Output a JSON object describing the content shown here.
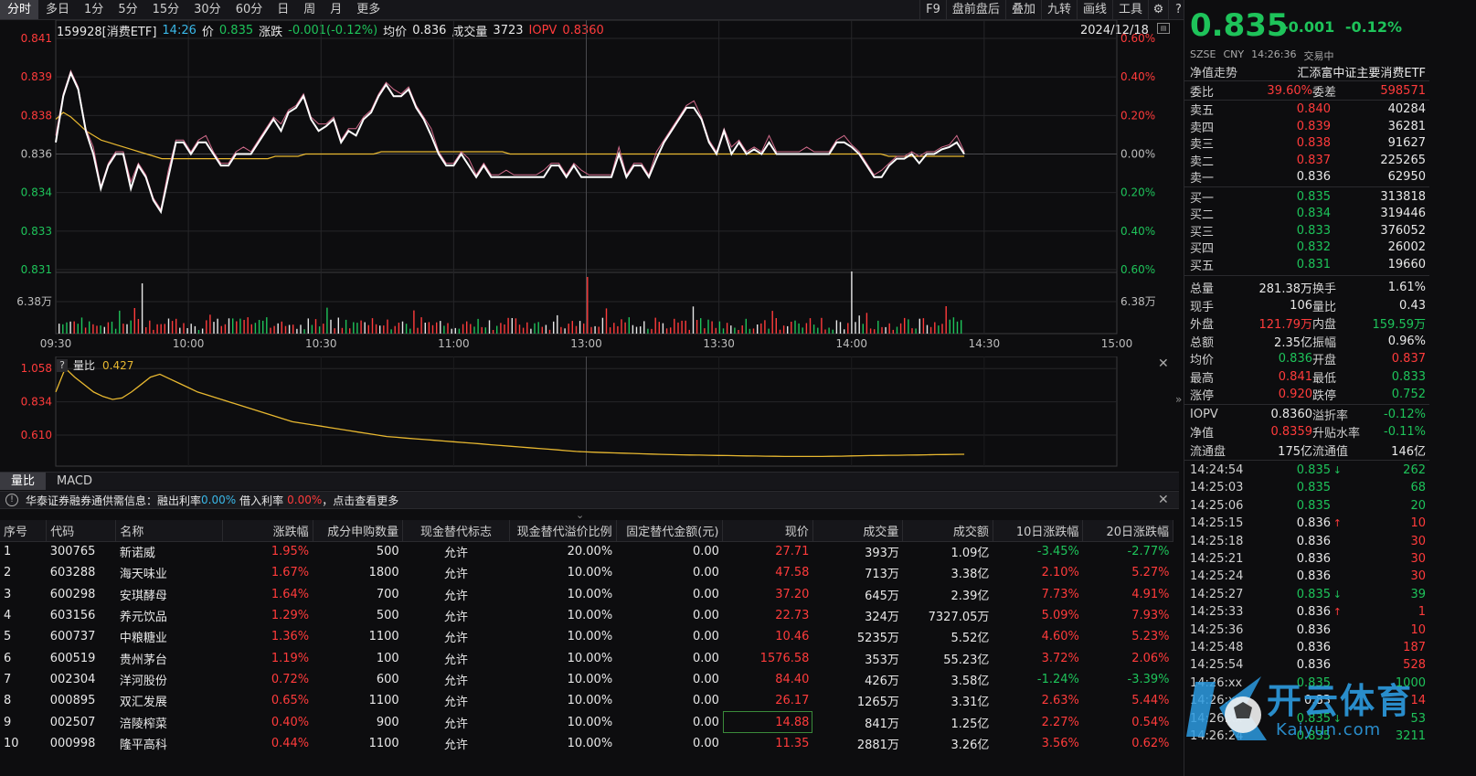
{
  "toolbar": {
    "left": [
      "分时",
      "多日",
      "1分",
      "5分",
      "15分",
      "30分",
      "60分",
      "日",
      "周",
      "月",
      "更多"
    ],
    "right": [
      "F9",
      "盘前盘后",
      "叠加",
      "九转",
      "画线",
      "工具"
    ]
  },
  "info": {
    "code": "159928[消费ETF]",
    "time": "14:26",
    "price_label": "价",
    "price": "0.835",
    "chg_label": "涨跌",
    "chg": "-0.001(-0.12%)",
    "avg_label": "均价",
    "avg": "0.836",
    "vol_label": "成交量",
    "vol": "3723",
    "iopv_label": "IOPV",
    "iopv": "0.8360",
    "date": "2024/12/18"
  },
  "chart_data": [
    {
      "type": "line",
      "name": "intraday",
      "y_ticks_left": [
        "0.841",
        "0.839",
        "0.838",
        "0.836",
        "0.834",
        "0.833",
        "0.831"
      ],
      "y_ticks_right": [
        "0.60%",
        "0.40%",
        "0.20%",
        "0.00%",
        "0.20%",
        "0.40%",
        "0.60%"
      ],
      "vol_tick": "6.38万",
      "x_ticks": [
        "09:30",
        "10:00",
        "10:30",
        "11:00",
        "13:00",
        "13:30",
        "14:00",
        "14:30",
        "15:00"
      ],
      "ylim": [
        0.831,
        0.841
      ],
      "series": [
        {
          "values": [
            0.8365,
            0.8385,
            0.8395,
            0.8388,
            0.837,
            0.836,
            0.8345,
            0.8355,
            0.836,
            0.836,
            0.8345,
            0.8355,
            0.835,
            0.834,
            0.8335,
            0.835,
            0.8365,
            0.8365,
            0.836,
            0.8365,
            0.8365,
            0.836,
            0.8355,
            0.8355,
            0.836,
            0.836,
            0.836,
            0.8365,
            0.837,
            0.8375,
            0.837,
            0.8378,
            0.838,
            0.8385,
            0.8375,
            0.837,
            0.8372,
            0.8375,
            0.8365,
            0.837,
            0.8368,
            0.8375,
            0.8378,
            0.8385,
            0.839,
            0.8385,
            0.8385,
            0.8388,
            0.838,
            0.8375,
            0.8368,
            0.836,
            0.8355,
            0.8355,
            0.836,
            0.8355,
            0.835,
            0.8355,
            0.835,
            0.835,
            0.835,
            0.835,
            0.835,
            0.835,
            0.835,
            0.835,
            0.8355,
            0.8355,
            0.835,
            0.8355,
            0.835,
            0.835,
            0.835,
            0.835,
            0.835,
            0.836,
            0.835,
            0.8355,
            0.8355,
            0.835,
            0.8358,
            0.8365,
            0.837,
            0.8375,
            0.838,
            0.838,
            0.8375,
            0.8365,
            0.836,
            0.837,
            0.836,
            0.8365,
            0.836,
            0.8362,
            0.836,
            0.8365,
            0.836,
            0.836,
            0.836,
            0.836,
            0.836,
            0.836,
            0.836,
            0.836,
            0.8365,
            0.8365,
            0.8363,
            0.836,
            0.8355,
            0.835,
            0.835,
            0.8355,
            0.8358,
            0.8358,
            0.836,
            0.8356,
            0.836,
            0.836,
            0.8362,
            0.8363,
            0.8365,
            0.836
          ]
        },
        {
          "values": [
            0.8375,
            0.8378,
            0.8376,
            0.8373,
            0.837,
            0.8368,
            0.8366,
            0.8365,
            0.8364,
            0.8363,
            0.8362,
            0.8361,
            0.836,
            0.8359,
            0.8358,
            0.8358,
            0.8358,
            0.8358,
            0.8358,
            0.8358,
            0.8358,
            0.8358,
            0.8358,
            0.8358,
            0.8358,
            0.8358,
            0.8358,
            0.8358,
            0.8358,
            0.8359,
            0.8359,
            0.8359,
            0.8359,
            0.836,
            0.836,
            0.836,
            0.836,
            0.836,
            0.836,
            0.836,
            0.836,
            0.836,
            0.836,
            0.8361,
            0.8361,
            0.8361,
            0.8361,
            0.8361,
            0.8361,
            0.8361,
            0.8361,
            0.8361,
            0.8361,
            0.8361,
            0.8361,
            0.8361,
            0.8361,
            0.8361,
            0.8361,
            0.8361,
            0.836,
            0.836,
            0.836,
            0.836,
            0.836,
            0.836,
            0.836,
            0.836,
            0.836,
            0.836,
            0.836,
            0.836,
            0.836,
            0.836,
            0.836,
            0.836,
            0.836,
            0.836,
            0.836,
            0.836,
            0.836,
            0.836,
            0.836,
            0.836,
            0.836,
            0.836,
            0.836,
            0.836,
            0.836,
            0.836,
            0.836,
            0.836,
            0.836,
            0.836,
            0.836,
            0.836,
            0.836,
            0.836,
            0.836,
            0.836,
            0.836,
            0.836,
            0.836,
            0.836,
            0.836,
            0.836,
            0.836,
            0.836,
            0.836,
            0.836,
            0.8359,
            0.8359,
            0.8359,
            0.8359,
            0.8359,
            0.8359,
            0.8359,
            0.8359,
            0.8359,
            0.8359,
            0.8359
          ]
        }
      ]
    },
    {
      "type": "line",
      "name": "量比",
      "title": "量比",
      "current": "0.427",
      "y_ticks": [
        "1.058",
        "0.834",
        "0.610"
      ],
      "ylim": [
        0.45,
        1.09
      ],
      "values": [
        0.9,
        1.06,
        1.0,
        0.95,
        0.9,
        0.87,
        0.85,
        0.86,
        0.9,
        0.95,
        1.0,
        1.02,
        0.99,
        0.96,
        0.93,
        0.9,
        0.88,
        0.86,
        0.84,
        0.82,
        0.8,
        0.78,
        0.76,
        0.74,
        0.72,
        0.7,
        0.69,
        0.68,
        0.67,
        0.66,
        0.65,
        0.64,
        0.63,
        0.62,
        0.61,
        0.6,
        0.595,
        0.59,
        0.585,
        0.58,
        0.575,
        0.57,
        0.565,
        0.56,
        0.555,
        0.55,
        0.545,
        0.54,
        0.535,
        0.53,
        0.525,
        0.52,
        0.515,
        0.51,
        0.505,
        0.5,
        0.497,
        0.494,
        0.492,
        0.49,
        0.488,
        0.486,
        0.484,
        0.482,
        0.48,
        0.478,
        0.477,
        0.476,
        0.475,
        0.474,
        0.473,
        0.472,
        0.471,
        0.47,
        0.469,
        0.468,
        0.467,
        0.466,
        0.466,
        0.466,
        0.466,
        0.466,
        0.467,
        0.468,
        0.47,
        0.471,
        0.472,
        0.473,
        0.474,
        0.474,
        0.475,
        0.476,
        0.477,
        0.478,
        0.479,
        0.48,
        0.481
      ]
    }
  ],
  "tabs": [
    "量比",
    "MACD"
  ],
  "notice": {
    "text1": "华泰证券融券通供需信息：融出利率",
    "rate1": "0.00%",
    "text2": "借入利率",
    "rate2": "0.00%",
    "text3": "，点击查看更多"
  },
  "table": {
    "headers": [
      "序号",
      "代码",
      "名称",
      "涨跌幅",
      "成分申购数量",
      "现金替代标志",
      "现金替代溢价比例",
      "固定替代金额(元)",
      "现价",
      "成交量",
      "成交额",
      "10日涨跌幅",
      "20日涨跌幅"
    ],
    "rows": [
      [
        "1",
        "300765",
        "新诺威",
        "1.95%",
        "500",
        "允许",
        "20.00%",
        "0.00",
        "27.71",
        "393万",
        "1.09亿",
        "-3.45%",
        "-2.77%"
      ],
      [
        "2",
        "603288",
        "海天味业",
        "1.67%",
        "1800",
        "允许",
        "10.00%",
        "0.00",
        "47.58",
        "713万",
        "3.38亿",
        "2.10%",
        "5.27%"
      ],
      [
        "3",
        "600298",
        "安琪酵母",
        "1.64%",
        "700",
        "允许",
        "10.00%",
        "0.00",
        "37.20",
        "645万",
        "2.39亿",
        "7.73%",
        "4.91%"
      ],
      [
        "4",
        "603156",
        "养元饮品",
        "1.29%",
        "500",
        "允许",
        "10.00%",
        "0.00",
        "22.73",
        "324万",
        "7327.05万",
        "5.09%",
        "7.93%"
      ],
      [
        "5",
        "600737",
        "中粮糖业",
        "1.36%",
        "1100",
        "允许",
        "10.00%",
        "0.00",
        "10.46",
        "5235万",
        "5.52亿",
        "4.60%",
        "5.23%"
      ],
      [
        "6",
        "600519",
        "贵州茅台",
        "1.19%",
        "100",
        "允许",
        "10.00%",
        "0.00",
        "1576.58",
        "353万",
        "55.23亿",
        "3.72%",
        "2.06%"
      ],
      [
        "7",
        "002304",
        "洋河股份",
        "0.72%",
        "600",
        "允许",
        "10.00%",
        "0.00",
        "84.40",
        "426万",
        "3.58亿",
        "-1.24%",
        "-3.39%"
      ],
      [
        "8",
        "000895",
        "双汇发展",
        "0.65%",
        "1100",
        "允许",
        "10.00%",
        "0.00",
        "26.17",
        "1265万",
        "3.31亿",
        "2.63%",
        "5.44%"
      ],
      [
        "9",
        "002507",
        "涪陵榨菜",
        "0.40%",
        "900",
        "允许",
        "10.00%",
        "0.00",
        "14.88",
        "841万",
        "1.25亿",
        "2.27%",
        "0.54%"
      ],
      [
        "10",
        "000998",
        "隆平高科",
        "0.44%",
        "1100",
        "允许",
        "10.00%",
        "0.00",
        "11.35",
        "2881万",
        "3.26亿",
        "3.56%",
        "0.62%"
      ]
    ]
  },
  "right": {
    "price": "0.835",
    "chg": "-0.001",
    "pct": "-0.12%",
    "market": "SZSE",
    "currency": "CNY",
    "time": "14:26:36",
    "status": "交易中",
    "nav_label": "净值走势",
    "index_name": "汇添富中证主要消费ETF",
    "weibi_label": "委比",
    "weibi": "39.60%",
    "weicha_label": "委差",
    "weicha": "598571",
    "asks": [
      {
        "label": "卖五",
        "price": "0.840",
        "vol": "40284"
      },
      {
        "label": "卖四",
        "price": "0.839",
        "vol": "36281"
      },
      {
        "label": "卖三",
        "price": "0.838",
        "vol": "91627"
      },
      {
        "label": "卖二",
        "price": "0.837",
        "vol": "225265"
      },
      {
        "label": "卖一",
        "price": "0.836",
        "vol": "62950"
      }
    ],
    "bids": [
      {
        "label": "买一",
        "price": "0.835",
        "vol": "313818"
      },
      {
        "label": "买二",
        "price": "0.834",
        "vol": "319446"
      },
      {
        "label": "买三",
        "price": "0.833",
        "vol": "376052"
      },
      {
        "label": "买四",
        "price": "0.832",
        "vol": "26002"
      },
      {
        "label": "买五",
        "price": "0.831",
        "vol": "19660"
      }
    ],
    "stats": [
      {
        "l1": "总量",
        "v1": "281.38万",
        "c1": "white",
        "l2": "换手",
        "v2": "1.61%",
        "c2": "white"
      },
      {
        "l1": "现手",
        "v1": "106",
        "c1": "white",
        "l2": "量比",
        "v2": "0.43",
        "c2": "white"
      },
      {
        "l1": "外盘",
        "v1": "121.79万",
        "c1": "red",
        "l2": "内盘",
        "v2": "159.59万",
        "c2": "green"
      },
      {
        "l1": "总额",
        "v1": "2.35亿",
        "c1": "white",
        "l2": "振幅",
        "v2": "0.96%",
        "c2": "white"
      },
      {
        "l1": "均价",
        "v1": "0.836",
        "c1": "green",
        "l2": "开盘",
        "v2": "0.837",
        "c2": "red"
      },
      {
        "l1": "最高",
        "v1": "0.841",
        "c1": "red",
        "l2": "最低",
        "v2": "0.833",
        "c2": "green"
      },
      {
        "l1": "涨停",
        "v1": "0.920",
        "c1": "red",
        "l2": "跌停",
        "v2": "0.752",
        "c2": "green"
      }
    ],
    "stats2": [
      {
        "l1": "IOPV",
        "v1": "0.8360",
        "c1": "white",
        "l2": "溢折率",
        "v2": "-0.12%",
        "c2": "green"
      },
      {
        "l1": "净值",
        "v1": "0.8359",
        "c1": "red",
        "l2": "升贴水率",
        "v2": "-0.11%",
        "c2": "green"
      },
      {
        "l1": "流通盘",
        "v1": "175亿",
        "c1": "white",
        "l2": "流通值",
        "v2": "146亿",
        "c2": "white"
      }
    ],
    "ticks": [
      {
        "t": "14:24:54",
        "p": "0.835",
        "pc": "green",
        "a": "↓",
        "ac": "green",
        "v": "262",
        "vc": "green"
      },
      {
        "t": "14:25:03",
        "p": "0.835",
        "pc": "green",
        "a": "",
        "ac": "",
        "v": "68",
        "vc": "green"
      },
      {
        "t": "14:25:06",
        "p": "0.835",
        "pc": "green",
        "a": "",
        "ac": "",
        "v": "20",
        "vc": "green"
      },
      {
        "t": "14:25:15",
        "p": "0.836",
        "pc": "white",
        "a": "↑",
        "ac": "red",
        "v": "10",
        "vc": "red"
      },
      {
        "t": "14:25:18",
        "p": "0.836",
        "pc": "white",
        "a": "",
        "ac": "",
        "v": "30",
        "vc": "red"
      },
      {
        "t": "14:25:21",
        "p": "0.836",
        "pc": "white",
        "a": "",
        "ac": "",
        "v": "30",
        "vc": "red"
      },
      {
        "t": "14:25:24",
        "p": "0.836",
        "pc": "white",
        "a": "",
        "ac": "",
        "v": "30",
        "vc": "red"
      },
      {
        "t": "14:25:27",
        "p": "0.835",
        "pc": "green",
        "a": "↓",
        "ac": "green",
        "v": "39",
        "vc": "green"
      },
      {
        "t": "14:25:33",
        "p": "0.836",
        "pc": "white",
        "a": "↑",
        "ac": "red",
        "v": "1",
        "vc": "red"
      },
      {
        "t": "14:25:36",
        "p": "0.836",
        "pc": "white",
        "a": "",
        "ac": "",
        "v": "10",
        "vc": "red"
      },
      {
        "t": "14:25:48",
        "p": "0.836",
        "pc": "white",
        "a": "",
        "ac": "",
        "v": "187",
        "vc": "red"
      },
      {
        "t": "14:25:54",
        "p": "0.836",
        "pc": "white",
        "a": "",
        "ac": "",
        "v": "528",
        "vc": "red"
      },
      {
        "t": "14:26:xx",
        "p": "0.835",
        "pc": "green",
        "a": "",
        "ac": "",
        "v": "1000",
        "vc": "green"
      },
      {
        "t": "14:26:xx",
        "p": "0.83",
        "pc": "white",
        "a": "",
        "ac": "",
        "v": "14",
        "vc": "red"
      },
      {
        "t": "14:26:xx",
        "p": "0.835",
        "pc": "green",
        "a": "↓",
        "ac": "green",
        "v": "53",
        "vc": "green"
      },
      {
        "t": "14:26:24",
        "p": "0.835",
        "pc": "green",
        "a": "",
        "ac": "",
        "v": "3211",
        "vc": "green"
      }
    ]
  },
  "watermark": {
    "logo_text": "开云体育",
    "url": "Kaiyun.com"
  },
  "colors": {
    "red": "#ff3b3b",
    "green": "#1ec35a",
    "yellow": "#e8b830",
    "cyan": "#3ab8e8"
  }
}
